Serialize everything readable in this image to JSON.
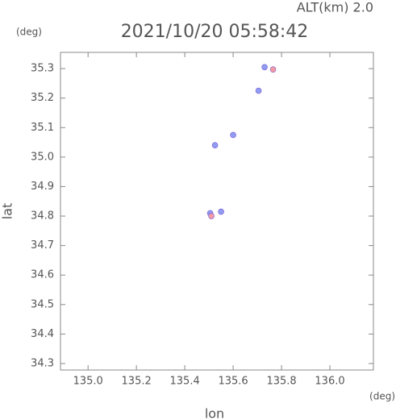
{
  "chart_data": {
    "type": "scatter",
    "title": "2021/10/20 05:58:42",
    "subtitle": "ALT(km) 2.0",
    "y_unit": "(deg)",
    "x_unit": "(deg)",
    "xlabel": "lon",
    "ylabel": "lat",
    "xlim": [
      134.886,
      136.18
    ],
    "ylim": [
      34.278,
      35.355
    ],
    "xticks": [
      {
        "value": 135.0,
        "label": "135.0"
      },
      135.2,
      135.4,
      135.6,
      135.8,
      {
        "value": 136.0,
        "label": "136.0"
      }
    ],
    "yticks": [
      34.3,
      34.4,
      34.5,
      34.6,
      34.7,
      34.8,
      34.9,
      {
        "value": 35.0,
        "label": "35.0"
      },
      35.1,
      35.2,
      35.3
    ],
    "series": [
      {
        "name": "blue",
        "color": "#8f9cf2",
        "x": [
          135.73,
          135.705,
          135.6,
          135.525,
          135.55,
          135.505
        ],
        "values": [
          35.305,
          35.225,
          35.075,
          35.04,
          34.815,
          34.81
        ]
      },
      {
        "name": "red",
        "color": "#f29aa6",
        "x": [
          135.765,
          135.51
        ],
        "values": [
          35.297,
          34.8
        ]
      }
    ]
  }
}
